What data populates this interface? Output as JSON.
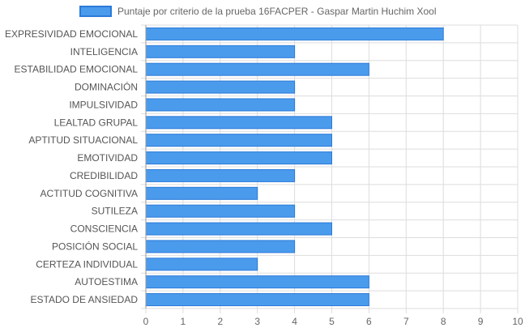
{
  "chart_data": {
    "type": "bar",
    "orientation": "horizontal",
    "legend_position": "top",
    "grid": true,
    "xlim": [
      0,
      10
    ],
    "x_ticks": [
      "0",
      "1",
      "2",
      "3",
      "4",
      "5",
      "6",
      "7",
      "8",
      "9",
      "10"
    ],
    "categories": [
      "EXPRESIVIDAD EMOCIONAL",
      "INTELIGENCIA",
      "ESTABILIDAD EMOCIONAL",
      "DOMINACIÓN",
      "IMPULSIVIDAD",
      "LEALTAD GRUPAL",
      "APTITUD SITUACIONAL",
      "EMOTIVIDAD",
      "CREDIBILIDAD",
      "ACTITUD COGNITIVA",
      "SUTILEZA",
      "CONSCIENCIA",
      "POSICIÓN SOCIAL",
      "CERTEZA INDIVIDUAL",
      "AUTOESTIMA",
      "ESTADO DE ANSIEDAD"
    ],
    "series": [
      {
        "name": "Puntaje por criterio de la prueba 16FACPER - Gaspar Martin Huchim Xool",
        "values": [
          8,
          4,
          6,
          4,
          4,
          5,
          5,
          5,
          4,
          3,
          4,
          5,
          4,
          3,
          6,
          6
        ],
        "color": "#4a9bec",
        "border_color": "#2b7ad9"
      }
    ]
  }
}
